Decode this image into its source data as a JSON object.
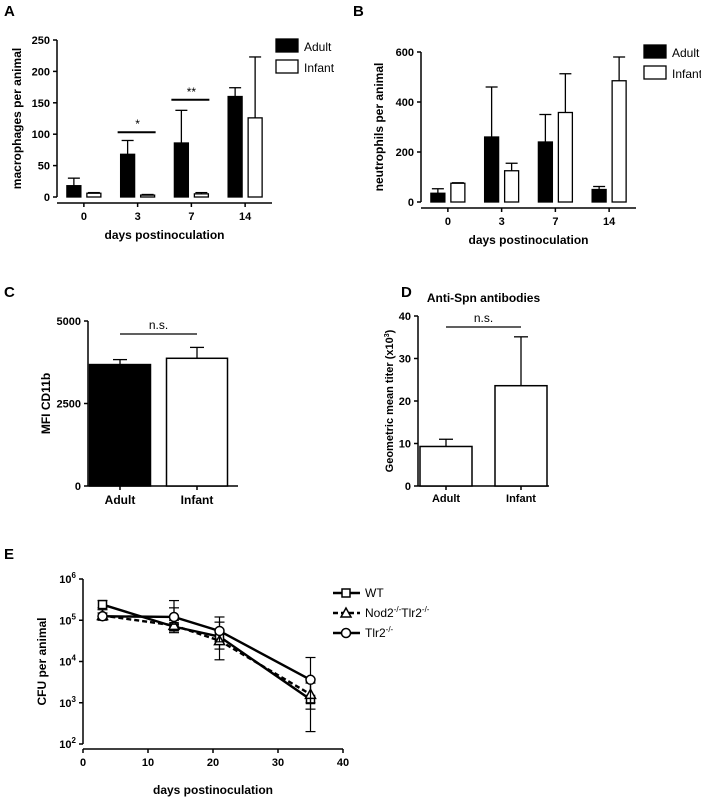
{
  "chart_data": [
    {
      "id": "A",
      "type": "bar",
      "panel_label": "A",
      "categories": [
        "0",
        "3",
        "7",
        "14"
      ],
      "series": [
        {
          "name": "Adult",
          "values": [
            18,
            68,
            86,
            160
          ],
          "errors": [
            12,
            22,
            52,
            14
          ],
          "color": "#000000"
        },
        {
          "name": "Infant",
          "values": [
            6,
            3,
            5,
            126
          ],
          "errors": [
            1,
            1,
            2,
            97
          ],
          "color": "#ffffff"
        }
      ],
      "xlabel": "days postinoculation",
      "ylabel": "macrophages per animal",
      "ylim": [
        0,
        250
      ],
      "yticks": [
        0,
        50,
        100,
        150,
        200,
        250
      ],
      "legend": "top-right",
      "annotations": [
        {
          "text": "*",
          "category": "3"
        },
        {
          "text": "**",
          "category": "7"
        }
      ]
    },
    {
      "id": "B",
      "type": "bar",
      "panel_label": "B",
      "categories": [
        "0",
        "3",
        "7",
        "14"
      ],
      "series": [
        {
          "name": "Adult",
          "values": [
            35,
            260,
            240,
            50
          ],
          "errors": [
            18,
            200,
            110,
            12
          ],
          "color": "#000000"
        },
        {
          "name": "Infant",
          "values": [
            75,
            125,
            358,
            485
          ],
          "errors": [
            2,
            30,
            155,
            95
          ],
          "color": "#ffffff"
        }
      ],
      "xlabel": "days postinoculation",
      "ylabel": "neutrophils per animal",
      "ylim": [
        0,
        600
      ],
      "yticks": [
        0,
        200,
        400,
        600
      ],
      "legend": "top-right"
    },
    {
      "id": "C",
      "type": "bar",
      "panel_label": "C",
      "categories": [
        "Adult",
        "Infant"
      ],
      "values": [
        3680,
        3870
      ],
      "errors": [
        150,
        330
      ],
      "colors": [
        "#000000",
        "#ffffff"
      ],
      "ylabel": "MFI CD11b",
      "ylim": [
        0,
        5000
      ],
      "yticks": [
        0,
        2500,
        5000
      ],
      "annotation": "n.s."
    },
    {
      "id": "D",
      "type": "bar",
      "panel_label": "D",
      "title": "Anti-Spn antibodies",
      "categories": [
        "Adult",
        "Infant"
      ],
      "values": [
        9.3,
        23.6
      ],
      "errors": [
        1.7,
        11.5
      ],
      "colors": [
        "#ffffff",
        "#ffffff"
      ],
      "ylabel": "Geometric mean titer (x10",
      "ylabel_sup": "3",
      "ylabel_end": ")",
      "ylim": [
        0,
        40
      ],
      "yticks": [
        0,
        10,
        20,
        30,
        40
      ],
      "annotation": "n.s."
    },
    {
      "id": "E",
      "type": "line",
      "panel_label": "E",
      "x": [
        3,
        14,
        21,
        35
      ],
      "series": [
        {
          "name": "WT",
          "values": [
            240000,
            70000,
            40000,
            1200
          ],
          "err_up": [
            300000,
            200000,
            90000,
            3000
          ],
          "err_down": [
            200000,
            50000,
            20000,
            200
          ],
          "marker": "square",
          "dash": "solid"
        },
        {
          "name": "Nod2",
          "name_sup1": "-/-",
          "name_mid": "Tlr2",
          "name_sup2": "-/-",
          "values": [
            130000,
            75000,
            32000,
            1600
          ],
          "err_up": [
            180000,
            100000,
            60000,
            3500
          ],
          "err_down": [
            100000,
            55000,
            11000,
            700
          ],
          "marker": "triangle",
          "dash": "dashed"
        },
        {
          "name": "Tlr2",
          "name_sup1": "-/-",
          "values": [
            125000,
            120000,
            55000,
            3600
          ],
          "err_up": [
            150000,
            300000,
            120000,
            12500
          ],
          "err_down": [
            110000,
            80000,
            30000,
            1000
          ],
          "marker": "circle",
          "dash": "solid"
        }
      ],
      "xlabel": "days postinoculation",
      "ylabel": "CFU per animal",
      "xlim": [
        0,
        40
      ],
      "xticks": [
        0,
        10,
        20,
        30,
        40
      ],
      "yscale": "log",
      "ylim": [
        100,
        1000000
      ],
      "ytick_base": "10",
      "ytick_exponents": [
        "2",
        "3",
        "4",
        "5",
        "6"
      ],
      "legend": "right"
    }
  ]
}
